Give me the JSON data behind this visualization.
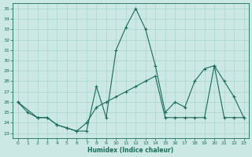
{
  "xlabel": "Humidex (Indice chaleur)",
  "background_color": "#cce8e4",
  "grid_color": "#aad4d0",
  "line_color": "#1a6b5a",
  "xlim": [
    -0.5,
    23.5
  ],
  "ylim": [
    22.5,
    35.5
  ],
  "yticks": [
    23,
    24,
    25,
    26,
    27,
    28,
    29,
    30,
    31,
    32,
    33,
    34,
    35
  ],
  "xticks": [
    0,
    1,
    2,
    3,
    4,
    5,
    6,
    7,
    8,
    9,
    10,
    11,
    12,
    13,
    14,
    15,
    16,
    17,
    18,
    19,
    20,
    21,
    22,
    23
  ],
  "line1_x": [
    0,
    1,
    2,
    3,
    4,
    5,
    6,
    7,
    8,
    9,
    10,
    11,
    12,
    13,
    14,
    15,
    16,
    17,
    18,
    19,
    20,
    21,
    22,
    23
  ],
  "line1_y": [
    26.0,
    25.0,
    24.5,
    24.5,
    23.8,
    23.5,
    23.2,
    23.2,
    27.5,
    24.5,
    31.0,
    33.2,
    35.0,
    33.0,
    29.5,
    25.0,
    26.0,
    25.5,
    28.0,
    29.2,
    29.5,
    28.0,
    26.5,
    24.5
  ],
  "line2_x": [
    0,
    2,
    3,
    4,
    5,
    6,
    7,
    8,
    9,
    10,
    11,
    12,
    13,
    14,
    15,
    16,
    17,
    18,
    19,
    20,
    21,
    22,
    23
  ],
  "line2_y": [
    26.0,
    24.5,
    24.5,
    23.8,
    23.5,
    23.2,
    24.0,
    25.5,
    26.0,
    26.5,
    27.0,
    27.5,
    28.0,
    28.5,
    24.5,
    24.5,
    24.5,
    24.5,
    24.5,
    29.5,
    24.5,
    24.5,
    24.5
  ]
}
